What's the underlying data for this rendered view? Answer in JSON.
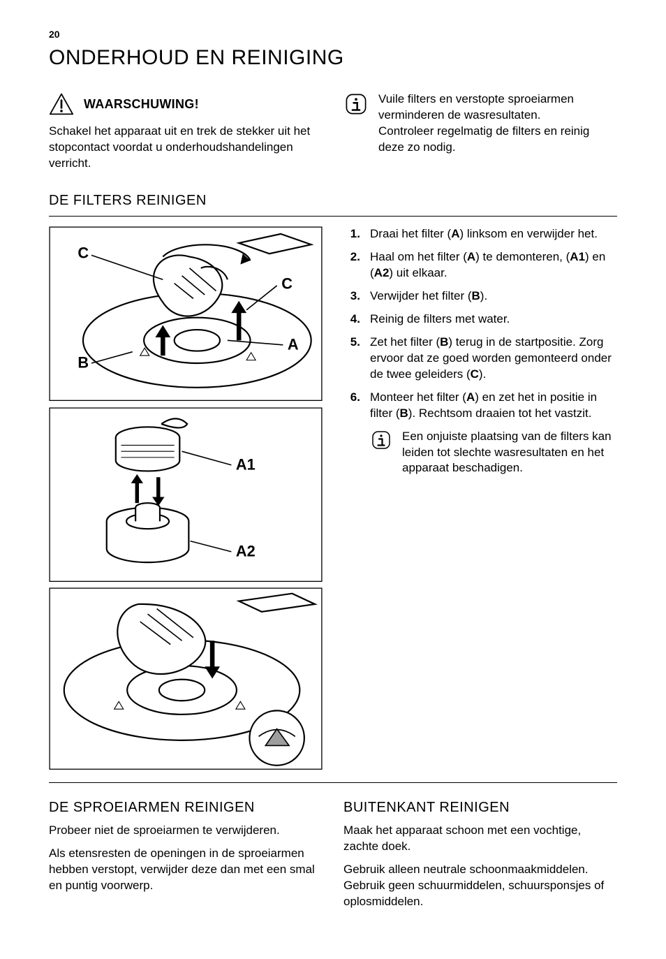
{
  "page_number": "20",
  "title": "ONDERHOUD EN REINIGING",
  "warning": {
    "label": "WAARSCHUWING!",
    "body": "Schakel het apparaat uit en trek de stekker uit het stopcontact voordat u onderhoudshandelingen verricht."
  },
  "info_top": {
    "line1": "Vuile filters en verstopte sproeiarmen verminderen de wasresultaten.",
    "line2": "Controleer regelmatig de filters en reinig deze zo nodig."
  },
  "filters": {
    "heading": "DE FILTERS REINIGEN",
    "labels": {
      "A": "A",
      "A1": "A1",
      "A2": "A2",
      "B": "B",
      "C": "C"
    },
    "steps": [
      {
        "parts": [
          {
            "t": "Draai het filter ("
          },
          {
            "b": "A"
          },
          {
            "t": ") linksom en verwijder het."
          }
        ]
      },
      {
        "parts": [
          {
            "t": "Haal om het filter ("
          },
          {
            "b": "A"
          },
          {
            "t": ") te demonteren, ("
          },
          {
            "b": "A1"
          },
          {
            "t": ") en ("
          },
          {
            "b": "A2"
          },
          {
            "t": ") uit elkaar."
          }
        ]
      },
      {
        "parts": [
          {
            "t": "Verwijder het filter ("
          },
          {
            "b": "B"
          },
          {
            "t": ")."
          }
        ]
      },
      {
        "parts": [
          {
            "t": "Reinig de filters met water."
          }
        ]
      },
      {
        "parts": [
          {
            "t": "Zet het filter ("
          },
          {
            "b": "B"
          },
          {
            "t": ") terug in de startpositie. Zorg ervoor dat ze goed worden gemonteerd onder de twee geleiders ("
          },
          {
            "b": "C"
          },
          {
            "t": ")."
          }
        ]
      },
      {
        "parts": [
          {
            "t": "Monteer het filter ("
          },
          {
            "b": "A"
          },
          {
            "t": ") en zet het in positie in filter ("
          },
          {
            "b": "B"
          },
          {
            "t": "). Rechtsom draaien tot het vastzit."
          }
        ]
      }
    ],
    "note": "Een onjuiste plaatsing van de filters kan leiden tot slechte wasresultaten en het apparaat beschadigen."
  },
  "sprayarms": {
    "heading": "DE SPROEIARMEN REINIGEN",
    "p1": "Probeer niet de sproeiarmen te verwijderen.",
    "p2": "Als etensresten de openingen in de sproeiarmen hebben verstopt, verwijder deze dan met een smal en puntig voorwerp."
  },
  "exterior": {
    "heading": "BUITENKANT REINIGEN",
    "p1": "Maak het apparaat schoon met een vochtige, zachte doek.",
    "p2": "Gebruik alleen neutrale schoonmaakmiddelen. Gebruik geen schuurmiddelen, schuursponsjes of oplosmiddelen."
  },
  "colors": {
    "stroke": "#000000",
    "bg": "#ffffff",
    "shade": "#9e9e9e"
  }
}
